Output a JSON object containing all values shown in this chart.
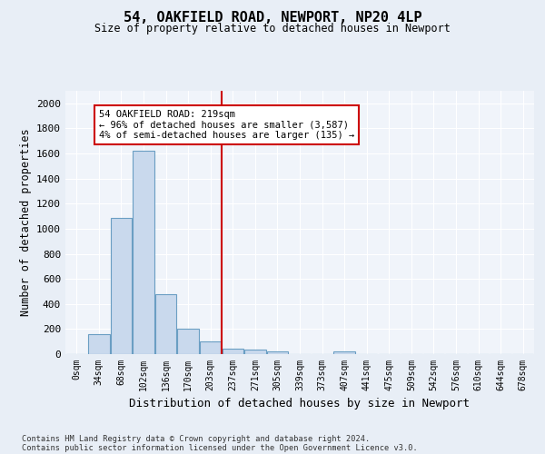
{
  "title_line1": "54, OAKFIELD ROAD, NEWPORT, NP20 4LP",
  "title_line2": "Size of property relative to detached houses in Newport",
  "xlabel": "Distribution of detached houses by size in Newport",
  "ylabel": "Number of detached properties",
  "bar_labels": [
    "0sqm",
    "34sqm",
    "68sqm",
    "102sqm",
    "136sqm",
    "170sqm",
    "203sqm",
    "237sqm",
    "271sqm",
    "305sqm",
    "339sqm",
    "373sqm",
    "407sqm",
    "441sqm",
    "475sqm",
    "509sqm",
    "542sqm",
    "576sqm",
    "610sqm",
    "644sqm",
    "678sqm"
  ],
  "bar_values": [
    0,
    160,
    1085,
    1625,
    480,
    200,
    100,
    45,
    35,
    25,
    0,
    0,
    20,
    0,
    0,
    0,
    0,
    0,
    0,
    0,
    0
  ],
  "bar_color": "#c9d9ed",
  "bar_edgecolor": "#6a9ec3",
  "vline_x": 6.5,
  "vline_color": "#cc0000",
  "annotation_text": "54 OAKFIELD ROAD: 219sqm\n← 96% of detached houses are smaller (3,587)\n4% of semi-detached houses are larger (135) →",
  "annotation_box_color": "#ffffff",
  "annotation_box_edgecolor": "#cc0000",
  "ylim": [
    0,
    2100
  ],
  "yticks": [
    0,
    200,
    400,
    600,
    800,
    1000,
    1200,
    1400,
    1600,
    1800,
    2000
  ],
  "footer_line1": "Contains HM Land Registry data © Crown copyright and database right 2024.",
  "footer_line2": "Contains public sector information licensed under the Open Government Licence v3.0.",
  "bg_color": "#e8eef6",
  "plot_bg_color": "#f0f4fa"
}
